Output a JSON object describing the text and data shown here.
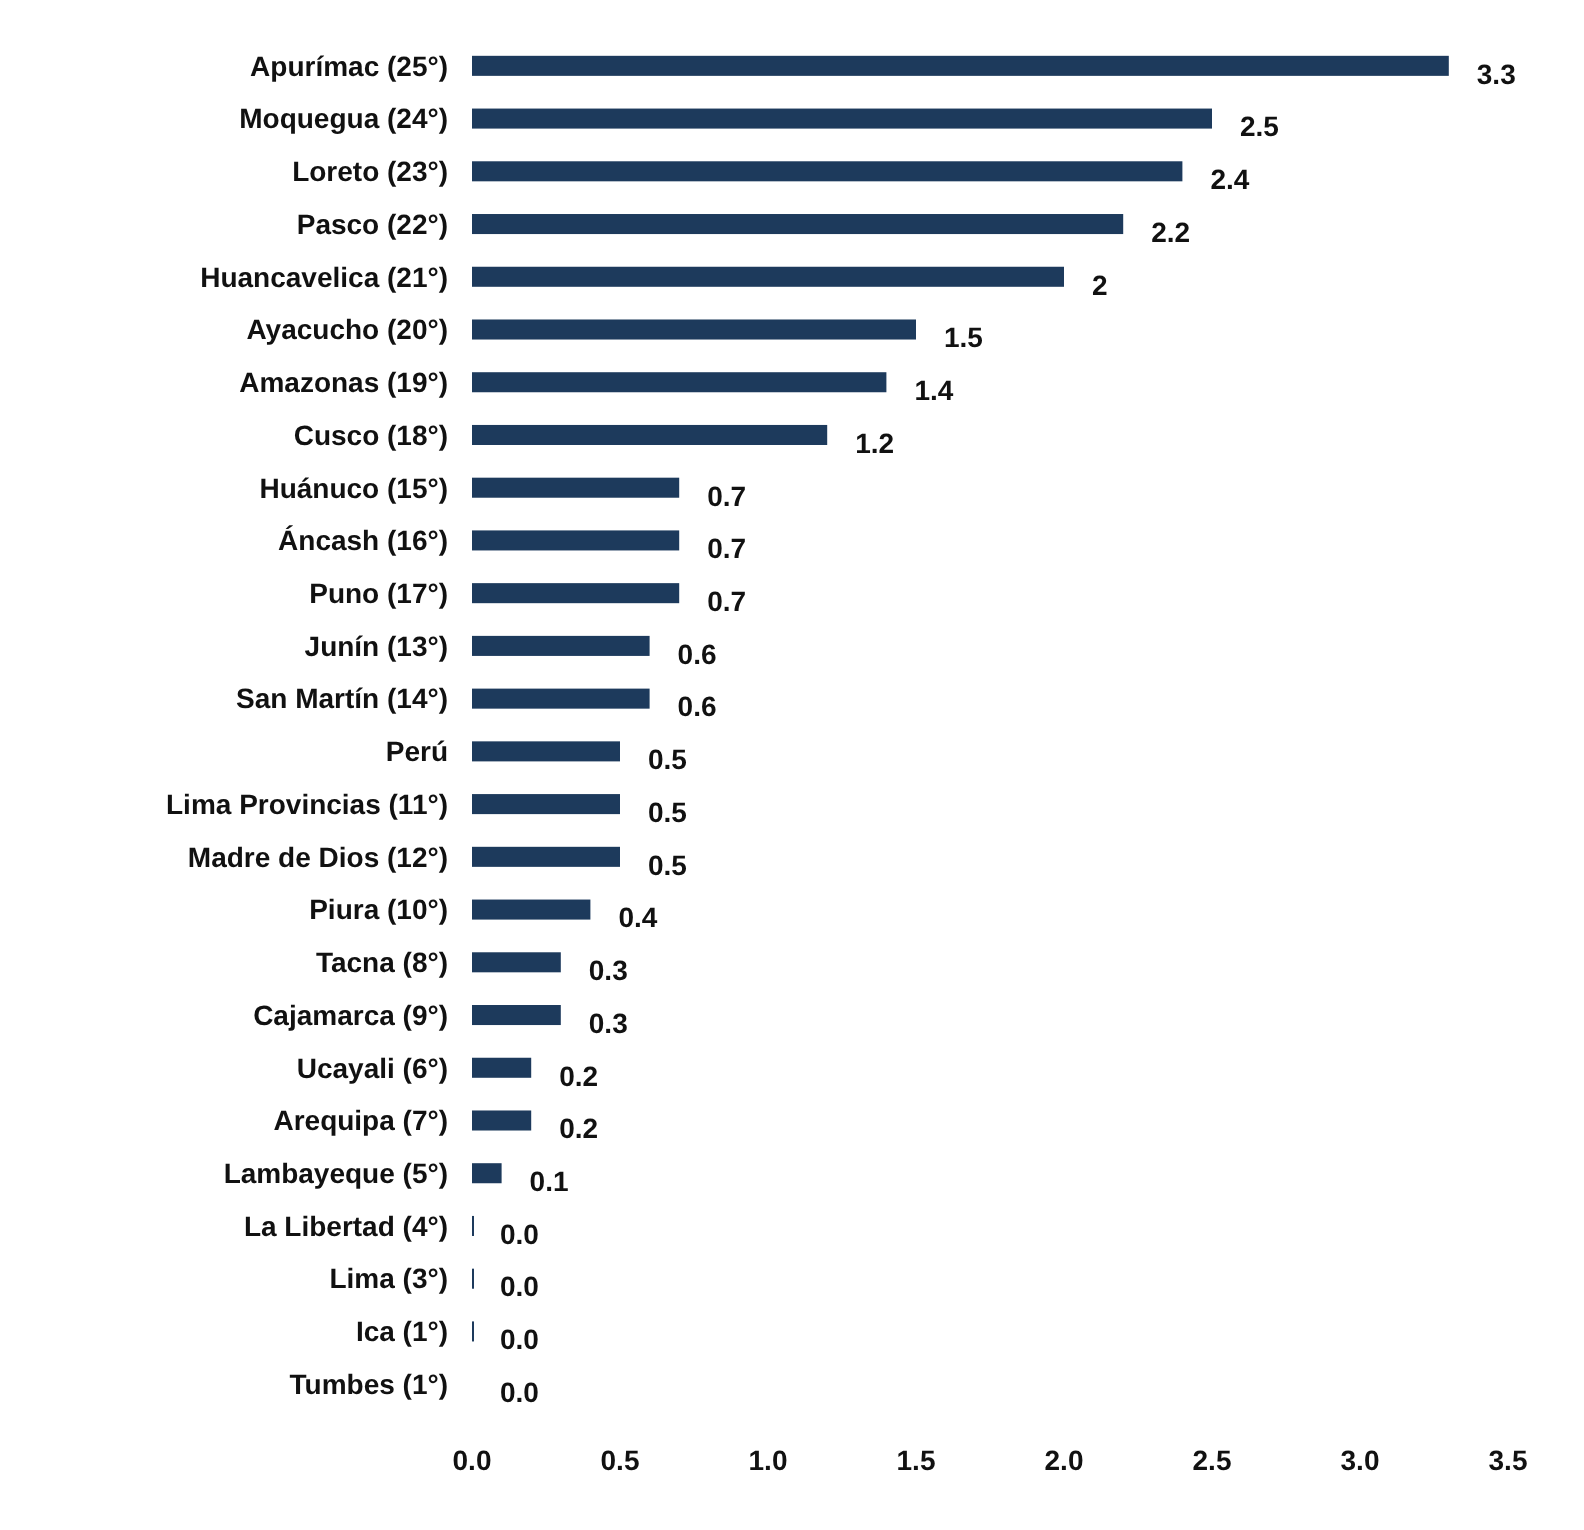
{
  "chart_data": {
    "type": "bar",
    "orientation": "horizontal",
    "categories": [
      "Apurímac (25°)",
      "Moquegua (24°)",
      "Loreto (23°)",
      "Pasco (22°)",
      "Huancavelica (21°)",
      "Ayacucho (20°)",
      "Amazonas (19°)",
      "Cusco (18°)",
      "Huánuco (15°)",
      "Áncash (16°)",
      "Puno (17°)",
      "Junín (13°)",
      "San Martín (14°)",
      "Perú",
      "Lima Provincias (11°)",
      "Madre de Dios (12°)",
      "Piura (10°)",
      "Tacna (8°)",
      "Cajamarca (9°)",
      "Ucayali (6°)",
      "Arequipa (7°)",
      "Lambayeque (5°)",
      "La Libertad (4°)",
      "Lima (3°)",
      "Ica (1°)",
      "Tumbes (1°)"
    ],
    "values": [
      3.3,
      2.5,
      2.4,
      2.2,
      2,
      1.5,
      1.4,
      1.2,
      0.7,
      0.7,
      0.7,
      0.6,
      0.6,
      0.5,
      0.5,
      0.5,
      0.4,
      0.3,
      0.3,
      0.2,
      0.2,
      0.1,
      0,
      0,
      0,
      0
    ],
    "value_labels": [
      "3.3",
      "2.5",
      "2.4",
      "2.2",
      "2",
      "1.5",
      "1.4",
      "1.2",
      "0.7",
      "0.7",
      "0.7",
      "0.6",
      "0.6",
      "0.5",
      "0.5",
      "0.5",
      "0.4",
      "0.3",
      "0.3",
      "0.2",
      "0.2",
      "0.1",
      "0.0",
      "0.0",
      "0.0",
      "0.0"
    ],
    "color": "#1d3a5c",
    "xlim": [
      0,
      3.5
    ],
    "xticks": [
      {
        "value": 0,
        "label": "0.0"
      },
      {
        "value": 0.5,
        "label": "0.5"
      },
      {
        "value": 1,
        "label": "1.0"
      },
      {
        "value": 1.5,
        "label": "1.5"
      },
      {
        "value": 2,
        "label": "2.0"
      },
      {
        "value": 2.5,
        "label": "2.5"
      },
      {
        "value": 3,
        "label": "3.0"
      },
      {
        "value": 3.5,
        "label": "3.5"
      }
    ],
    "grid": false
  }
}
